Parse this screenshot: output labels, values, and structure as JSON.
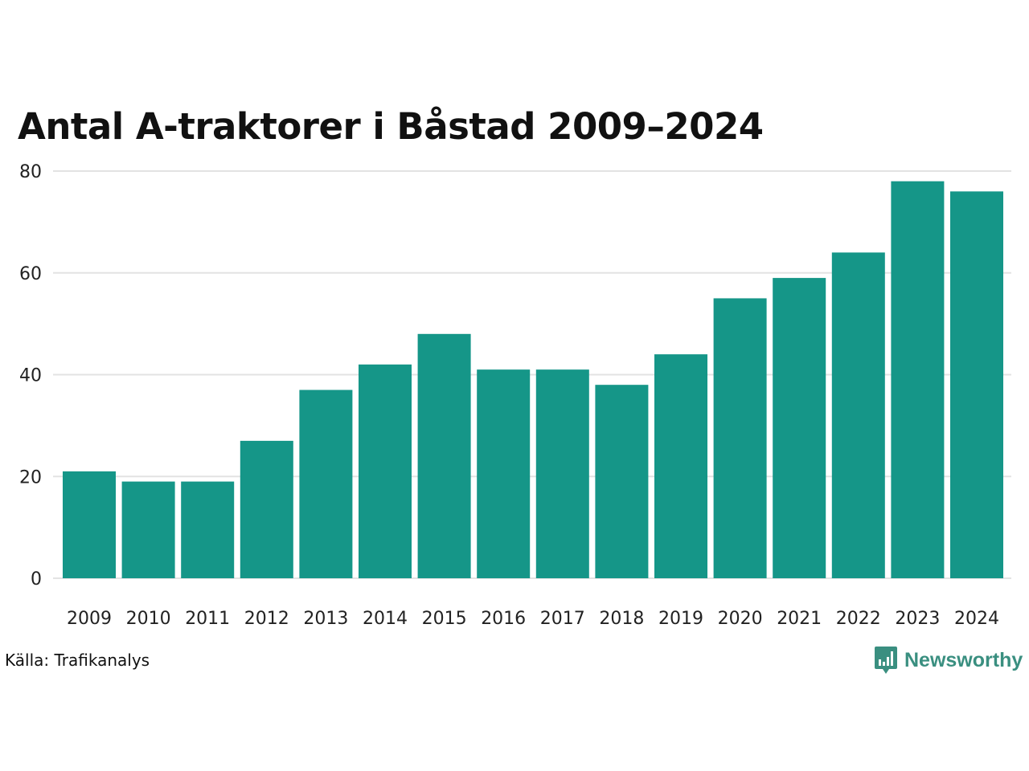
{
  "chart_data": {
    "type": "bar",
    "title": "Antal A-traktorer i Båstad 2009–2024",
    "xlabel": "",
    "ylabel": "",
    "categories": [
      "2009",
      "2010",
      "2011",
      "2012",
      "2013",
      "2014",
      "2015",
      "2016",
      "2017",
      "2018",
      "2019",
      "2020",
      "2021",
      "2022",
      "2023",
      "2024"
    ],
    "values": [
      21,
      19,
      19,
      27,
      37,
      42,
      48,
      41,
      41,
      38,
      44,
      55,
      59,
      64,
      78,
      76
    ],
    "ylim": [
      0,
      80
    ],
    "yticks": [
      "0",
      "20",
      "40",
      "60",
      "80"
    ],
    "grid": true,
    "legend": "none",
    "bar_color": "#159688",
    "grid_color": "#e3e3e3"
  },
  "footer": {
    "source": "Källa: Trafikanalys",
    "brand": "Newsworthy",
    "brand_color": "#3a8f80",
    "brand_icon": "bar-chart-speech-bubble-icon"
  }
}
